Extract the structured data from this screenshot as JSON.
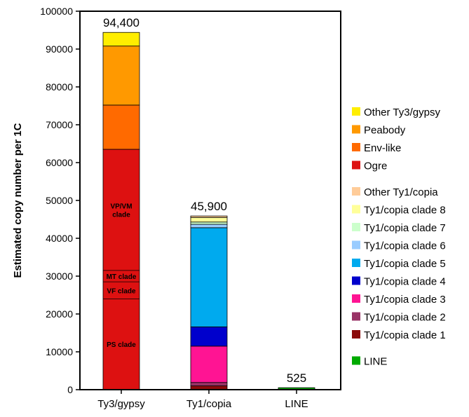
{
  "chart_data": {
    "type": "bar",
    "stacked": true,
    "ylabel": "Estimated copy number per 1C",
    "ylim": [
      0,
      100000
    ],
    "yticks": [
      0,
      10000,
      20000,
      30000,
      40000,
      50000,
      60000,
      70000,
      80000,
      90000,
      100000
    ],
    "categories": [
      "Ty3/gypsy",
      "Ty1/copia",
      "LINE"
    ],
    "totals": [
      "94,400",
      "45,900",
      "525"
    ],
    "legend_position": "right",
    "series": [
      {
        "name": "Ogre",
        "color": "#dd1111",
        "values": [
          63500,
          0,
          0
        ]
      },
      {
        "name": "Env-like",
        "color": "#ff6a00",
        "values": [
          11700,
          0,
          0
        ]
      },
      {
        "name": "Peabody",
        "color": "#ff9900",
        "values": [
          15600,
          0,
          0
        ]
      },
      {
        "name": "Other Ty3/gypsy",
        "color": "#ffee00",
        "values": [
          3600,
          0,
          0
        ]
      },
      {
        "name": "Ty1/copia clade 1",
        "color": "#8b0a0a",
        "values": [
          0,
          1000,
          0
        ]
      },
      {
        "name": "Ty1/copia clade 2",
        "color": "#993366",
        "values": [
          0,
          900,
          0
        ]
      },
      {
        "name": "Ty1/copia clade 3",
        "color": "#ff1493",
        "values": [
          0,
          9600,
          0
        ]
      },
      {
        "name": "Ty1/copia clade 4",
        "color": "#0000cc",
        "values": [
          0,
          5100,
          0
        ]
      },
      {
        "name": "Ty1/copia clade 5",
        "color": "#00aaee",
        "values": [
          0,
          26200,
          0
        ]
      },
      {
        "name": "Ty1/copia clade 6",
        "color": "#99ccff",
        "values": [
          0,
          900,
          0
        ]
      },
      {
        "name": "Ty1/copia clade 7",
        "color": "#ccffcc",
        "values": [
          0,
          600,
          0
        ]
      },
      {
        "name": "Ty1/copia clade 8",
        "color": "#ffff99",
        "values": [
          0,
          1200,
          0
        ]
      },
      {
        "name": "Other Ty1/copia",
        "color": "#ffcc99",
        "values": [
          0,
          400,
          0
        ]
      },
      {
        "name": "LINE",
        "color": "#00aa00",
        "values": [
          0,
          0,
          525
        ]
      }
    ],
    "legend_groups": [
      [
        "Other Ty3/gypsy",
        "Peabody",
        "Env-like",
        "Ogre"
      ],
      [
        "Other Ty1/copia",
        "Ty1/copia clade 8",
        "Ty1/copia clade 7",
        "Ty1/copia clade 6",
        "Ty1/copia clade 5",
        "Ty1/copia clade 4",
        "Ty1/copia clade 3",
        "Ty1/copia clade 2",
        "Ty1/copia clade 1"
      ],
      [
        "LINE"
      ]
    ],
    "annotations": [
      {
        "category": "Ty3/gypsy",
        "series": "Ogre",
        "range": [
          0,
          24000
        ],
        "label": [
          "PS clade"
        ]
      },
      {
        "category": "Ty3/gypsy",
        "series": "Ogre",
        "range": [
          24000,
          28500
        ],
        "label": [
          "VF clade"
        ]
      },
      {
        "category": "Ty3/gypsy",
        "series": "Ogre",
        "range": [
          28500,
          31500
        ],
        "label": [
          "MT clade"
        ]
      },
      {
        "category": "Ty3/gypsy",
        "series": "Ogre",
        "range": [
          31500,
          63500
        ],
        "label": [
          "VP/VM",
          "clade"
        ]
      }
    ]
  }
}
